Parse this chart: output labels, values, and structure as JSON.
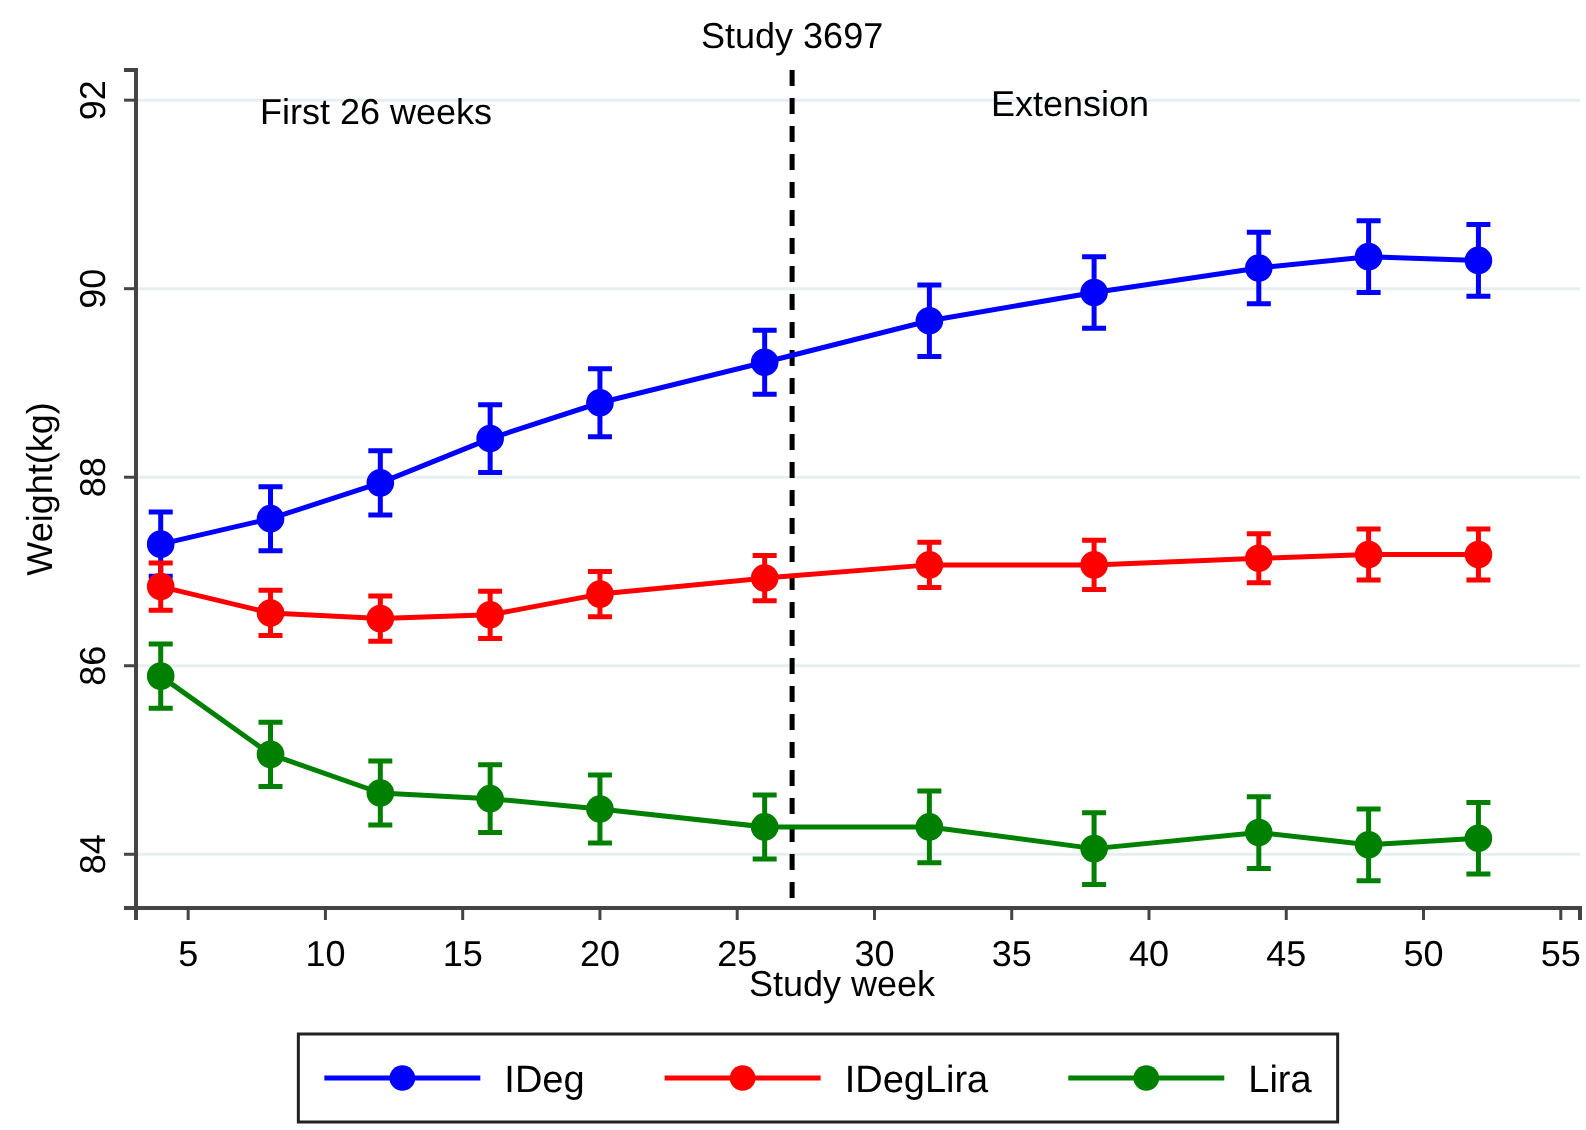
{
  "chart_data": {
    "type": "line",
    "xlabel": "Study week",
    "ylabel": "Weight(kg)",
    "xlim": [
      3.1,
      55.7
    ],
    "xticks": [
      5,
      10,
      15,
      20,
      25,
      30,
      35,
      40,
      45,
      50,
      55
    ],
    "ylim": [
      83.43,
      92.32
    ],
    "yticks": [
      84,
      86,
      88,
      90,
      92
    ],
    "grid": "y",
    "legend": "bottom",
    "marker": "circle",
    "line_style": "solid",
    "series": [
      {
        "name": "IDeg",
        "color": "#0000ff",
        "x": [
          4,
          8,
          12,
          16,
          20,
          26,
          32,
          38,
          44,
          48,
          52
        ],
        "values": [
          87.29,
          87.56,
          87.94,
          88.41,
          88.79,
          89.22,
          89.66,
          89.96,
          90.22,
          90.34,
          90.3
        ],
        "errors": [
          0.34,
          0.34,
          0.34,
          0.36,
          0.36,
          0.34,
          0.38,
          0.38,
          0.38,
          0.38,
          0.38
        ]
      },
      {
        "name": "IDegLira",
        "color": "#ff0000",
        "x": [
          4,
          8,
          12,
          16,
          20,
          26,
          32,
          38,
          44,
          48,
          52
        ],
        "values": [
          86.84,
          86.56,
          86.5,
          86.54,
          86.76,
          86.93,
          87.07,
          87.07,
          87.14,
          87.18,
          87.18
        ],
        "errors": [
          0.25,
          0.24,
          0.24,
          0.25,
          0.24,
          0.24,
          0.24,
          0.26,
          0.26,
          0.27,
          0.27
        ]
      },
      {
        "name": "Lira",
        "color": "#008000",
        "x": [
          4,
          8,
          12,
          16,
          20,
          26,
          32,
          38,
          44,
          48,
          52
        ],
        "values": [
          85.89,
          85.06,
          84.65,
          84.59,
          84.48,
          84.29,
          84.29,
          84.06,
          84.23,
          84.1,
          84.17
        ],
        "errors": [
          0.34,
          0.34,
          0.34,
          0.36,
          0.36,
          0.34,
          0.38,
          0.38,
          0.38,
          0.38,
          0.38
        ]
      }
    ],
    "ref_lines": [
      {
        "axis": "x",
        "value": 27,
        "label": "Study 3697",
        "color": "#000000",
        "line_style": "dashed"
      }
    ],
    "annotations": [
      "First 26 weeks",
      "Extension"
    ]
  }
}
